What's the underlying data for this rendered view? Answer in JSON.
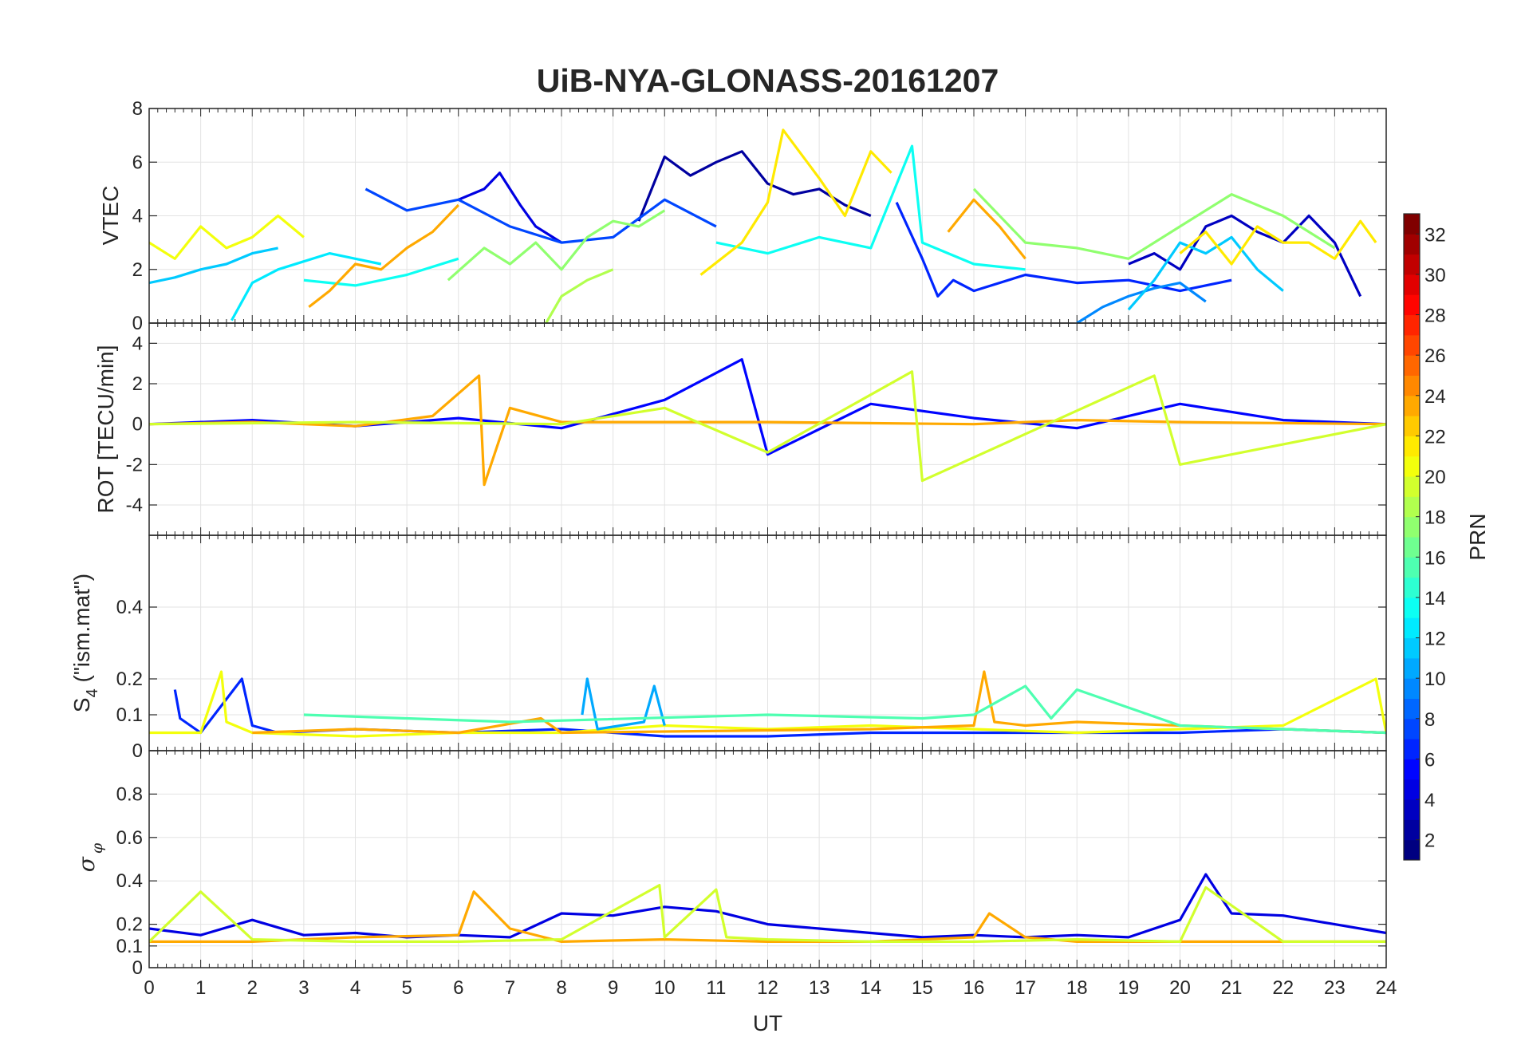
{
  "title": "UiB-NYA-GLONASS-20161207",
  "xlabel": "UT",
  "x_ticks": [
    "0",
    "1",
    "2",
    "3",
    "4",
    "5",
    "6",
    "7",
    "8",
    "9",
    "10",
    "11",
    "12",
    "13",
    "14",
    "15",
    "16",
    "17",
    "18",
    "19",
    "20",
    "21",
    "22",
    "23",
    "24"
  ],
  "colorbar": {
    "label": "PRN",
    "range": [
      1,
      32
    ],
    "ticks": [
      "2",
      "4",
      "6",
      "8",
      "10",
      "12",
      "14",
      "16",
      "18",
      "20",
      "22",
      "24",
      "26",
      "28",
      "30",
      "32"
    ],
    "colormap": "jet"
  },
  "panels": [
    {
      "id": "vtec",
      "ylabel": "VTEC",
      "ylim": [
        0,
        8
      ],
      "y_ticks": [
        "0",
        "2",
        "4",
        "6",
        "8"
      ]
    },
    {
      "id": "rot",
      "ylabel": "ROT [TECU/min]",
      "ylim": [
        -5.5,
        5
      ],
      "y_ticks": [
        "-4",
        "-2",
        "0",
        "2",
        "4"
      ]
    },
    {
      "id": "s4",
      "ylabel_main": "S",
      "ylabel_sub": "4",
      "ylabel_rest": " (\"ism.mat\")",
      "ylim": [
        0,
        0.6
      ],
      "y_ticks": [
        "0",
        "0.1",
        "0.2",
        "0.4"
      ],
      "y_tick_values": [
        0,
        0.1,
        0.2,
        0.4
      ]
    },
    {
      "id": "sigma",
      "ylabel_main": "σ",
      "ylabel_sub": "φ",
      "ylim": [
        0,
        1
      ],
      "y_ticks": [
        "0",
        "0.1",
        "0.2",
        "0.4",
        "0.6",
        "0.8"
      ],
      "y_tick_values": [
        0,
        0.1,
        0.2,
        0.4,
        0.6,
        0.8
      ]
    }
  ],
  "chart_data": {
    "type": "line",
    "title": "UiB-NYA-GLONASS-20161207",
    "xlabel": "UT",
    "xlim": [
      0,
      24
    ],
    "grid": true,
    "color_by": "PRN",
    "series": [
      {
        "prn": 4,
        "panel": "vtec",
        "x": [
          6.0,
          6.5,
          6.8,
          7.2,
          7.5,
          8.0
        ],
        "y": [
          4.6,
          5.0,
          5.6,
          4.4,
          3.6,
          3.0
        ]
      },
      {
        "prn": 2,
        "panel": "vtec",
        "x": [
          9.5,
          10.0,
          10.5,
          11.0,
          11.5,
          12.0,
          12.5,
          13.0,
          13.5,
          14.0
        ],
        "y": [
          3.8,
          6.2,
          5.5,
          6.0,
          6.4,
          5.2,
          4.8,
          5.0,
          4.4,
          4.0
        ]
      },
      {
        "prn": 3,
        "panel": "vtec",
        "x": [
          19.0,
          19.5,
          20.0,
          20.5,
          21.0,
          21.5,
          22.0,
          22.5,
          23.0,
          23.5
        ],
        "y": [
          2.2,
          2.6,
          2.0,
          3.6,
          4.0,
          3.4,
          3.0,
          4.0,
          3.0,
          1.0
        ]
      },
      {
        "prn": 7,
        "panel": "vtec",
        "x": [
          4.2,
          5.0,
          6.0,
          7.0,
          8.0,
          9.0,
          10.0,
          11.0
        ],
        "y": [
          5.0,
          4.2,
          4.6,
          3.6,
          3.0,
          3.2,
          4.6,
          3.6
        ]
      },
      {
        "prn": 6,
        "panel": "vtec",
        "x": [
          14.5,
          15.0,
          15.3,
          15.6,
          16.0,
          17.0,
          18.0,
          19.0,
          20.0,
          21.0
        ],
        "y": [
          4.5,
          2.4,
          1.0,
          1.6,
          1.2,
          1.8,
          1.5,
          1.6,
          1.2,
          1.6
        ]
      },
      {
        "prn": 9,
        "panel": "vtec",
        "x": [
          18.0,
          18.5,
          19.0,
          19.5,
          20.0,
          20.5
        ],
        "y": [
          0.0,
          0.6,
          1.0,
          1.3,
          1.5,
          0.8
        ]
      },
      {
        "prn": 11,
        "panel": "vtec",
        "x": [
          0.0,
          0.5,
          1.0,
          1.5,
          2.0,
          2.5
        ],
        "y": [
          1.5,
          1.7,
          2.0,
          2.2,
          2.6,
          2.8
        ]
      },
      {
        "prn": 11,
        "panel": "vtec",
        "x": [
          19.0,
          19.5,
          20.0,
          20.5,
          21.0,
          21.5,
          22.0
        ],
        "y": [
          0.5,
          1.6,
          3.0,
          2.6,
          3.2,
          2.0,
          1.2
        ]
      },
      {
        "prn": 12,
        "panel": "vtec",
        "x": [
          1.6,
          2.0,
          2.5,
          3.0,
          3.5,
          4.0,
          4.5
        ],
        "y": [
          0.1,
          1.5,
          2.0,
          2.3,
          2.6,
          2.4,
          2.2
        ]
      },
      {
        "prn": 13,
        "panel": "vtec",
        "x": [
          3.0,
          4.0,
          5.0,
          6.0
        ],
        "y": [
          1.6,
          1.4,
          1.8,
          2.4
        ]
      },
      {
        "prn": 13,
        "panel": "vtec",
        "x": [
          11.0,
          12.0,
          13.0,
          14.0,
          14.8,
          15.0,
          16.0,
          17.0
        ],
        "y": [
          3.0,
          2.6,
          3.2,
          2.8,
          6.6,
          3.0,
          2.2,
          2.0
        ]
      },
      {
        "prn": 17,
        "panel": "vtec",
        "x": [
          5.8,
          6.5,
          7.0,
          7.5,
          8.0,
          8.5,
          9.0,
          9.5,
          10.0
        ],
        "y": [
          1.6,
          2.8,
          2.2,
          3.0,
          2.0,
          3.2,
          3.8,
          3.6,
          4.2
        ]
      },
      {
        "prn": 18,
        "panel": "vtec",
        "x": [
          7.7,
          8.0,
          8.5,
          9.0
        ],
        "y": [
          0.0,
          1.0,
          1.6,
          2.0
        ]
      },
      {
        "prn": 17,
        "panel": "vtec",
        "x": [
          16.0,
          17.0,
          18.0,
          19.0,
          20.0,
          21.0,
          22.0,
          23.0
        ],
        "y": [
          5.0,
          3.0,
          2.8,
          2.4,
          3.6,
          4.8,
          4.0,
          2.8
        ]
      },
      {
        "prn": 20,
        "panel": "vtec",
        "x": [
          0.0,
          0.5,
          1.0,
          1.5,
          2.0,
          2.5,
          3.0
        ],
        "y": [
          3.0,
          2.4,
          3.6,
          2.8,
          3.2,
          4.0,
          3.2
        ]
      },
      {
        "prn": 21,
        "panel": "vtec",
        "x": [
          10.7,
          11.5,
          12.0,
          12.3,
          13.0,
          13.5,
          14.0,
          14.4
        ],
        "y": [
          1.8,
          3.0,
          4.5,
          7.2,
          5.4,
          4.0,
          6.4,
          5.6
        ]
      },
      {
        "prn": 21,
        "panel": "vtec",
        "x": [
          20.0,
          20.5,
          21.0,
          21.5,
          22.0,
          22.5,
          23.0,
          23.5,
          23.8
        ],
        "y": [
          2.6,
          3.4,
          2.2,
          3.6,
          3.0,
          3.0,
          2.4,
          3.8,
          3.0
        ]
      },
      {
        "prn": 23,
        "panel": "vtec",
        "x": [
          3.1,
          3.5,
          4.0,
          4.5,
          5.0,
          5.5,
          6.0
        ],
        "y": [
          0.6,
          1.2,
          2.2,
          2.0,
          2.8,
          3.4,
          4.4
        ]
      },
      {
        "prn": 23,
        "panel": "vtec",
        "x": [
          15.5,
          16.0,
          16.5,
          17.0
        ],
        "y": [
          3.4,
          4.6,
          3.6,
          2.4
        ]
      },
      {
        "prn": 5,
        "panel": "rot",
        "x": [
          0,
          2,
          4,
          6,
          8,
          10,
          11.5,
          12,
          14,
          16,
          18,
          20,
          22,
          24
        ],
        "y": [
          0,
          0.2,
          -0.1,
          0.3,
          -0.2,
          1.2,
          3.2,
          -1.5,
          1.0,
          0.3,
          -0.2,
          1.0,
          0.2,
          0
        ]
      },
      {
        "prn": 23,
        "panel": "rot",
        "x": [
          0,
          2,
          4,
          5.5,
          6.4,
          6.5,
          7,
          8,
          12,
          16,
          18,
          20,
          24
        ],
        "y": [
          0,
          0.1,
          -0.1,
          0.4,
          2.4,
          -3.0,
          0.8,
          0.1,
          0.1,
          0,
          0.2,
          0.1,
          0
        ]
      },
      {
        "prn": 19,
        "panel": "rot",
        "x": [
          0,
          4,
          8,
          10,
          12,
          14.8,
          15,
          19.5,
          20,
          24
        ],
        "y": [
          0,
          0.1,
          0,
          0.8,
          -1.4,
          2.6,
          -2.8,
          2.4,
          -2.0,
          0
        ]
      },
      {
        "prn": 6,
        "panel": "s4",
        "x": [
          0.5,
          0.6,
          1.0,
          1.8,
          2.0,
          2.5,
          4,
          6,
          8,
          10,
          12,
          14,
          16,
          18,
          20,
          22,
          24
        ],
        "y": [
          0.17,
          0.09,
          0.05,
          0.2,
          0.07,
          0.05,
          0.06,
          0.05,
          0.06,
          0.04,
          0.04,
          0.05,
          0.05,
          0.05,
          0.05,
          0.06,
          0.05
        ]
      },
      {
        "prn": 20,
        "panel": "s4",
        "x": [
          0,
          1,
          1.4,
          1.5,
          2,
          4,
          6,
          8,
          10,
          12,
          14,
          16,
          18,
          20,
          22,
          23.8,
          24
        ],
        "y": [
          0.05,
          0.05,
          0.22,
          0.08,
          0.05,
          0.04,
          0.05,
          0.05,
          0.07,
          0.06,
          0.07,
          0.06,
          0.05,
          0.06,
          0.07,
          0.2,
          0.05
        ]
      },
      {
        "prn": 23,
        "panel": "s4",
        "x": [
          2,
          4,
          6,
          7.6,
          8,
          14,
          16,
          16.2,
          16.4,
          17,
          18,
          24
        ],
        "y": [
          0.05,
          0.06,
          0.05,
          0.09,
          0.05,
          0.06,
          0.07,
          0.22,
          0.08,
          0.07,
          0.08,
          0.05
        ]
      },
      {
        "prn": 10,
        "panel": "s4",
        "x": [
          8.4,
          8.5,
          8.7,
          9.6,
          9.8,
          10.0
        ],
        "y": [
          0.1,
          0.2,
          0.06,
          0.08,
          0.18,
          0.07
        ]
      },
      {
        "prn": 15,
        "panel": "s4",
        "x": [
          3,
          5,
          7,
          12,
          15,
          16,
          17,
          17.5,
          18,
          20,
          24
        ],
        "y": [
          0.1,
          0.09,
          0.08,
          0.1,
          0.09,
          0.1,
          0.18,
          0.09,
          0.17,
          0.07,
          0.05
        ]
      },
      {
        "prn": 4,
        "panel": "sigma",
        "x": [
          0,
          1,
          2,
          3,
          4,
          5,
          6,
          7,
          8,
          9,
          10,
          11,
          12,
          13,
          14,
          15,
          16,
          17,
          18,
          19,
          20,
          20.5,
          21,
          22,
          23,
          24
        ],
        "y": [
          0.18,
          0.15,
          0.22,
          0.15,
          0.16,
          0.14,
          0.15,
          0.14,
          0.25,
          0.24,
          0.28,
          0.26,
          0.2,
          0.18,
          0.16,
          0.14,
          0.15,
          0.14,
          0.15,
          0.14,
          0.22,
          0.43,
          0.25,
          0.24,
          0.2,
          0.16
        ]
      },
      {
        "prn": 23,
        "panel": "sigma",
        "x": [
          0,
          2,
          4,
          6,
          6.3,
          7,
          8,
          10,
          12,
          14,
          16,
          16.3,
          17,
          18,
          20,
          24
        ],
        "y": [
          0.12,
          0.12,
          0.14,
          0.15,
          0.35,
          0.18,
          0.12,
          0.13,
          0.12,
          0.12,
          0.14,
          0.25,
          0.14,
          0.12,
          0.12,
          0.12
        ]
      },
      {
        "prn": 19,
        "panel": "sigma",
        "x": [
          0,
          1,
          2,
          4,
          6,
          8,
          9.9,
          10,
          11,
          11.2,
          12,
          14,
          16,
          18,
          20,
          20.5,
          22,
          24
        ],
        "y": [
          0.12,
          0.35,
          0.13,
          0.12,
          0.12,
          0.13,
          0.38,
          0.14,
          0.36,
          0.14,
          0.13,
          0.12,
          0.12,
          0.13,
          0.12,
          0.37,
          0.12,
          0.12
        ]
      }
    ]
  }
}
